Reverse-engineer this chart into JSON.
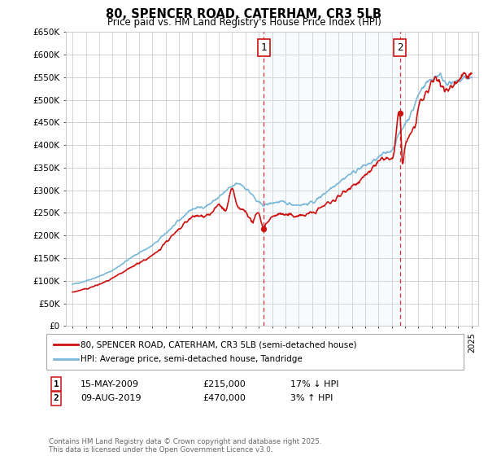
{
  "title": "80, SPENCER ROAD, CATERHAM, CR3 5LB",
  "subtitle": "Price paid vs. HM Land Registry's House Price Index (HPI)",
  "ylabel_ticks": [
    "£0",
    "£50K",
    "£100K",
    "£150K",
    "£200K",
    "£250K",
    "£300K",
    "£350K",
    "£400K",
    "£450K",
    "£500K",
    "£550K",
    "£600K",
    "£650K"
  ],
  "ytick_values": [
    0,
    50000,
    100000,
    150000,
    200000,
    250000,
    300000,
    350000,
    400000,
    450000,
    500000,
    550000,
    600000,
    650000
  ],
  "background_color": "#ffffff",
  "grid_color": "#cccccc",
  "hpi_color": "#7ab8d8",
  "hpi_fill_color": "#ddeef8",
  "price_color": "#cc1111",
  "annotation1_date": "15-MAY-2009",
  "annotation1_price": "£215,000",
  "annotation1_hpi": "17% ↓ HPI",
  "annotation1_year": 2009.37,
  "annotation1_value": 215000,
  "annotation2_date": "09-AUG-2019",
  "annotation2_price": "£470,000",
  "annotation2_hpi": "3% ↑ HPI",
  "annotation2_year": 2019.6,
  "annotation2_value": 470000,
  "legend_label_price": "80, SPENCER ROAD, CATERHAM, CR3 5LB (semi-detached house)",
  "legend_label_hpi": "HPI: Average price, semi-detached house, Tandridge",
  "footer": "Contains HM Land Registry data © Crown copyright and database right 2025.\nThis data is licensed under the Open Government Licence v3.0.",
  "xmin": 1994.5,
  "xmax": 2025.5,
  "ymin": 0,
  "ymax": 650000
}
